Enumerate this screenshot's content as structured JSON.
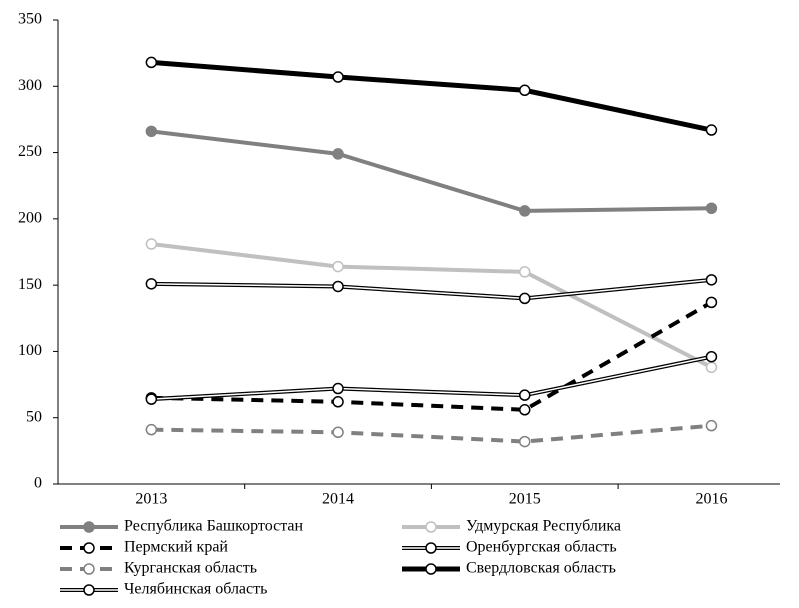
{
  "chart_data": {
    "type": "line",
    "categories": [
      "2013",
      "2014",
      "2015",
      "2016"
    ],
    "ylim": [
      0,
      350
    ],
    "yticks": [
      0,
      50,
      100,
      150,
      200,
      250,
      300,
      350
    ],
    "series": [
      {
        "name": "Республика Башкортостан",
        "color": "#808080",
        "style": "solid",
        "marker": "filled",
        "values": [
          266,
          249,
          206,
          208
        ]
      },
      {
        "name": "Удмурская Республика",
        "color": "#c0c0c0",
        "style": "solid",
        "marker": "open",
        "values": [
          181,
          164,
          160,
          88
        ]
      },
      {
        "name": "Пермский край",
        "color": "#000000",
        "style": "dashed",
        "marker": "open",
        "values": [
          65,
          62,
          56,
          137
        ]
      },
      {
        "name": "Оренбургская область",
        "color": "#000000",
        "style": "double",
        "marker": "open",
        "values": [
          64,
          72,
          67,
          96
        ]
      },
      {
        "name": "Курганская область",
        "color": "#808080",
        "style": "dashed",
        "marker": "open",
        "values": [
          41,
          39,
          32,
          44
        ]
      },
      {
        "name": "Свердловская область",
        "color": "#000000",
        "style": "thick",
        "marker": "open",
        "values": [
          318,
          307,
          297,
          267
        ]
      },
      {
        "name": "Челябинская область",
        "color": "#000000",
        "style": "double",
        "marker": "open",
        "values": [
          151,
          149,
          140,
          154
        ]
      }
    ]
  }
}
